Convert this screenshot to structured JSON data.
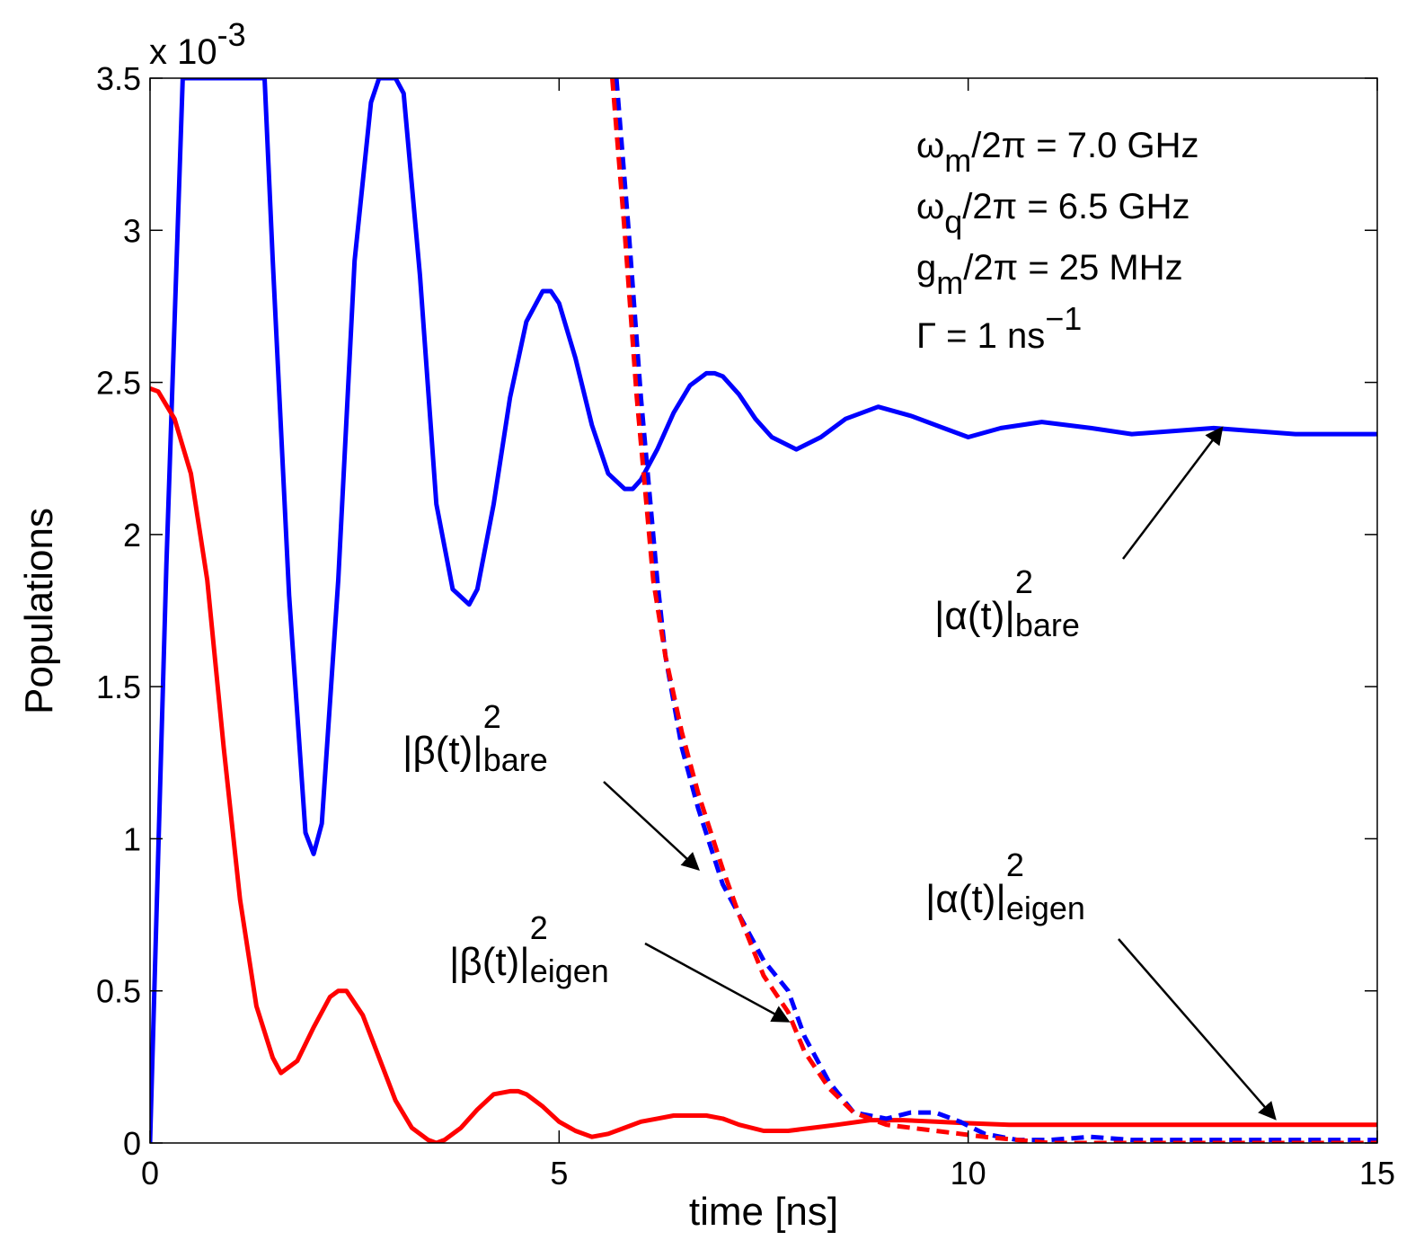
{
  "chart_data": {
    "type": "line",
    "title": "",
    "xlabel": "time [ns]",
    "ylabel": "Populations",
    "y_multiplier": "x 10",
    "y_multiplier_exp": "-3",
    "xlim": [
      0,
      15
    ],
    "ylim": [
      0,
      3.5
    ],
    "xticks": [
      0,
      5,
      10,
      15
    ],
    "xtick_labels": [
      "0",
      "5",
      "10",
      "15"
    ],
    "yticks": [
      0,
      0.5,
      1,
      1.5,
      2,
      2.5,
      3,
      3.5
    ],
    "ytick_labels": [
      "0",
      "0.5",
      "1",
      "1.5",
      "2",
      "2.5",
      "3",
      "3.5"
    ],
    "grid": false,
    "series": [
      {
        "name": "|α(t)|²_bare",
        "color": "#0000ff",
        "style": "solid",
        "x": [
          0,
          0.2,
          0.4,
          0.45,
          1.4,
          1.5,
          1.7,
          1.9,
          2.0,
          2.1,
          2.3,
          2.5,
          2.7,
          2.8,
          2.9,
          3.0,
          3.1,
          3.3,
          3.5,
          3.7,
          3.9,
          4.0,
          4.2,
          4.4,
          4.6,
          4.8,
          4.9,
          5.0,
          5.2,
          5.4,
          5.6,
          5.8,
          5.9,
          6.0,
          6.2,
          6.4,
          6.6,
          6.8,
          6.9,
          7.0,
          7.2,
          7.4,
          7.6,
          7.9,
          8.2,
          8.5,
          8.9,
          9.3,
          9.7,
          10.0,
          10.4,
          10.9,
          11.5,
          12.0,
          12.5,
          13.0,
          13.5,
          14.0,
          15.0
        ],
        "y": [
          0,
          1.9,
          3.5,
          3.5,
          3.5,
          2.9,
          1.8,
          1.02,
          0.95,
          1.05,
          1.85,
          2.9,
          3.42,
          3.5,
          3.5,
          3.5,
          3.45,
          2.85,
          2.1,
          1.82,
          1.77,
          1.82,
          2.1,
          2.45,
          2.7,
          2.8,
          2.8,
          2.76,
          2.58,
          2.36,
          2.2,
          2.15,
          2.15,
          2.18,
          2.28,
          2.4,
          2.49,
          2.53,
          2.53,
          2.52,
          2.46,
          2.38,
          2.32,
          2.28,
          2.32,
          2.38,
          2.42,
          2.39,
          2.35,
          2.32,
          2.35,
          2.37,
          2.35,
          2.33,
          2.34,
          2.35,
          2.34,
          2.33,
          2.33
        ]
      },
      {
        "name": "|β(t)|²_bare",
        "color": "#ff0000",
        "style": "solid",
        "x": [
          0,
          0.1,
          0.3,
          0.5,
          0.7,
          0.9,
          1.1,
          1.3,
          1.5,
          1.6,
          1.8,
          2.0,
          2.2,
          2.3,
          2.4,
          2.6,
          2.8,
          3.0,
          3.2,
          3.4,
          3.5,
          3.6,
          3.8,
          4.0,
          4.2,
          4.4,
          4.5,
          4.6,
          4.8,
          5.0,
          5.2,
          5.4,
          5.6,
          5.8,
          6.0,
          6.2,
          6.4,
          6.6,
          6.8,
          7.0,
          7.2,
          7.5,
          7.8,
          8.1,
          8.4,
          8.8,
          9.2,
          9.6,
          10.0,
          10.5,
          11.0,
          12.0,
          13.0,
          14.0,
          15.0
        ],
        "y": [
          2.48,
          2.47,
          2.38,
          2.2,
          1.85,
          1.3,
          0.8,
          0.45,
          0.28,
          0.23,
          0.27,
          0.38,
          0.48,
          0.5,
          0.5,
          0.42,
          0.28,
          0.14,
          0.05,
          0.01,
          0.0,
          0.01,
          0.05,
          0.11,
          0.16,
          0.17,
          0.17,
          0.16,
          0.12,
          0.07,
          0.04,
          0.02,
          0.03,
          0.05,
          0.07,
          0.08,
          0.09,
          0.09,
          0.09,
          0.08,
          0.06,
          0.04,
          0.04,
          0.05,
          0.06,
          0.075,
          0.075,
          0.07,
          0.065,
          0.06,
          0.06,
          0.06,
          0.06,
          0.06,
          0.06
        ]
      },
      {
        "name": "|α(t)|²_eigen",
        "color": "#0000ff",
        "style": "dashed",
        "x": [
          5.7,
          5.85,
          6.0,
          6.1,
          6.2,
          6.3,
          6.5,
          6.7,
          7.0,
          7.2,
          7.5,
          7.8,
          8.0,
          8.3,
          8.6,
          9.0,
          9.3,
          9.6,
          9.9,
          10.2,
          10.6,
          11.0,
          11.5,
          12.0,
          12.5,
          13.0,
          14.0,
          15.0
        ],
        "y": [
          3.5,
          3.0,
          2.45,
          2.15,
          1.85,
          1.6,
          1.3,
          1.1,
          0.85,
          0.75,
          0.6,
          0.5,
          0.35,
          0.2,
          0.1,
          0.08,
          0.1,
          0.1,
          0.07,
          0.03,
          0.01,
          0.01,
          0.02,
          0.01,
          0.01,
          0.01,
          0.01,
          0.01
        ]
      },
      {
        "name": "|β(t)|²_eigen",
        "color": "#ff0000",
        "style": "dashed",
        "x": [
          5.65,
          5.8,
          5.95,
          6.05,
          6.15,
          6.3,
          6.5,
          6.7,
          7.0,
          7.2,
          7.5,
          7.8,
          8.0,
          8.3,
          8.6,
          9.0,
          9.3,
          9.6,
          9.9,
          10.2,
          10.6,
          11.0,
          11.5,
          12.0,
          13.0,
          14.0,
          15.0
        ],
        "y": [
          3.5,
          3.0,
          2.45,
          2.15,
          1.85,
          1.6,
          1.35,
          1.15,
          0.9,
          0.75,
          0.55,
          0.43,
          0.3,
          0.18,
          0.1,
          0.06,
          0.05,
          0.04,
          0.03,
          0.02,
          0.01,
          0.0,
          0.0,
          0.0,
          0.0,
          0.0,
          0.0
        ]
      }
    ],
    "parameters": [
      {
        "base": "ω",
        "sub": "m",
        "rest": "/2π = 7.0 GHz"
      },
      {
        "base": "ω",
        "sub": "q",
        "rest": "/2π = 6.5 GHz"
      },
      {
        "base": "g",
        "sub": "m",
        "rest": "/2π = 25 MHz"
      },
      {
        "base": "Γ = 1 ns",
        "sup": "−1"
      }
    ],
    "annotations": [
      {
        "text": "|α(t)|",
        "sup": "2",
        "sub": "bare",
        "target_x": 13.1,
        "target_y": 2.35
      },
      {
        "text": "|β(t)|",
        "sup": "2",
        "sub": "bare",
        "target_x": 6.7,
        "target_y": 0.9
      },
      {
        "text": "|β(t)|",
        "sup": "2",
        "sub": "eigen",
        "target_x": 7.8,
        "target_y": 0.4
      },
      {
        "text": "|α(t)|",
        "sup": "2",
        "sub": "eigen",
        "target_x": 13.75,
        "target_y": 0.08
      }
    ]
  }
}
